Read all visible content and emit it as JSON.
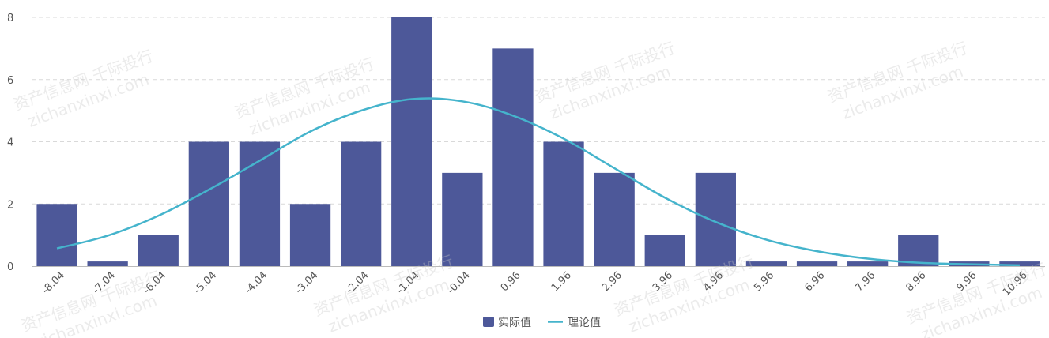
{
  "chart_data": {
    "type": "bar",
    "categories": [
      "-8.04",
      "-7.04",
      "-6.04",
      "-5.04",
      "-4.04",
      "-3.04",
      "-2.04",
      "-1.04",
      "-0.04",
      "0.96",
      "1.96",
      "2.96",
      "3.96",
      "4.96",
      "5.96",
      "6.96",
      "7.96",
      "8.96",
      "9.96",
      "10.96"
    ],
    "series": [
      {
        "name": "实际值",
        "type": "bar",
        "color": "#4d5899",
        "values": [
          2,
          0.15,
          1,
          4,
          4,
          2,
          4,
          8,
          3,
          7,
          4,
          3,
          1,
          3,
          0.15,
          0.15,
          0.15,
          1,
          0.15,
          0.15
        ]
      },
      {
        "name": "理论值",
        "type": "line",
        "color": "#45b4cc",
        "values": [
          0.57,
          0.98,
          1.62,
          2.46,
          3.39,
          4.33,
          5.0,
          5.37,
          5.3,
          4.84,
          4.1,
          3.15,
          2.2,
          1.42,
          0.85,
          0.48,
          0.24,
          0.11,
          0.06,
          0.03
        ]
      }
    ],
    "yticks": [
      "0",
      "2",
      "4",
      "6",
      "8"
    ],
    "ylim": [
      0,
      8
    ],
    "grid": true,
    "legend": "bottom-center"
  },
  "watermark": {
    "lines": [
      "资产信息网 千际投行",
      "zichanxinxi.com"
    ]
  }
}
